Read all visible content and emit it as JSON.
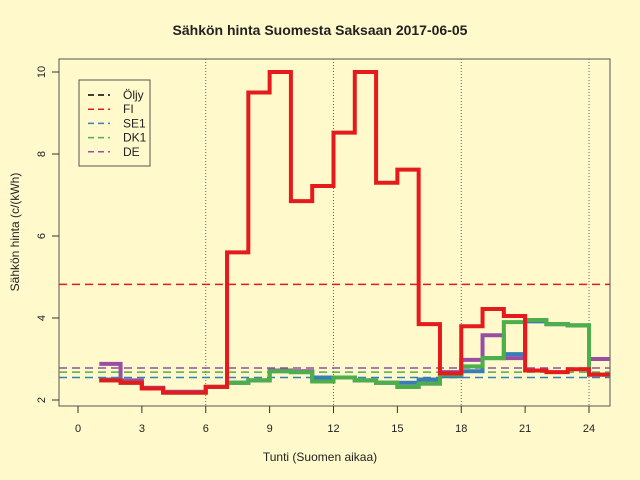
{
  "chart_data": {
    "type": "line",
    "title": "Sähkön hinta Suomesta Saksaan 2017-06-05",
    "xlabel": "Tunti (Suomen aikaa)",
    "ylabel": "Sähkön hinta (c/(kWh)",
    "xlim": [
      -1,
      25
    ],
    "ylim": [
      2,
      10
    ],
    "x_ticks": [
      0,
      3,
      6,
      9,
      12,
      15,
      18,
      21,
      24
    ],
    "y_ticks": [
      2,
      4,
      6,
      8,
      10
    ],
    "vertical_gridlines": [
      6,
      12,
      18,
      24
    ],
    "legend_position": "top-left",
    "legend": [
      {
        "label": "Öljy",
        "color": "#000000"
      },
      {
        "label": "FI",
        "color": "#e41a1c"
      },
      {
        "label": "SE1",
        "color": "#377eb8"
      },
      {
        "label": "DK1",
        "color": "#4daf4a"
      },
      {
        "label": "DE",
        "color": "#984ea3"
      }
    ],
    "reference_lines": [
      {
        "name": "FI",
        "y": 4.82,
        "color": "#e41a1c"
      },
      {
        "name": "DE",
        "y": 2.78,
        "color": "#984ea3"
      },
      {
        "name": "DK1",
        "y": 2.68,
        "color": "#4daf4a"
      },
      {
        "name": "SE1",
        "y": 2.55,
        "color": "#377eb8"
      }
    ],
    "x": [
      1,
      2,
      3,
      4,
      5,
      6,
      7,
      8,
      9,
      10,
      11,
      12,
      13,
      14,
      15,
      16,
      17,
      18,
      19,
      20,
      21,
      22,
      23,
      24
    ],
    "series": [
      {
        "name": "DE",
        "color": "#984ea3",
        "values": [
          2.88,
          2.48,
          2.3,
          2.2,
          2.2,
          2.32,
          2.42,
          2.48,
          2.72,
          2.7,
          2.48,
          2.55,
          2.48,
          2.42,
          2.32,
          2.4,
          2.68,
          2.98,
          3.58,
          3.02,
          3.92,
          3.85,
          3.82,
          3.0
        ]
      },
      {
        "name": "SE1",
        "color": "#377eb8",
        "values": [
          2.5,
          2.42,
          2.28,
          2.18,
          2.18,
          2.32,
          2.42,
          2.48,
          2.7,
          2.68,
          2.55,
          2.55,
          2.48,
          2.42,
          2.42,
          2.5,
          2.58,
          2.7,
          3.02,
          3.12,
          3.92,
          3.85,
          3.82,
          2.62
        ]
      },
      {
        "name": "DK1",
        "color": "#4daf4a",
        "values": [
          2.48,
          2.42,
          2.28,
          2.18,
          2.18,
          2.32,
          2.42,
          2.48,
          2.7,
          2.68,
          2.45,
          2.55,
          2.48,
          2.42,
          2.32,
          2.4,
          2.62,
          2.82,
          3.02,
          3.9,
          3.95,
          3.85,
          3.82,
          2.62
        ]
      },
      {
        "name": "FI",
        "color": "#e41a1c",
        "values": [
          2.48,
          2.42,
          2.28,
          2.18,
          2.18,
          2.32,
          5.6,
          9.5,
          10.0,
          6.85,
          7.22,
          8.52,
          10.0,
          7.3,
          7.62,
          3.85,
          2.65,
          3.8,
          4.22,
          4.05,
          2.72,
          2.68,
          2.75,
          2.62
        ]
      }
    ]
  }
}
